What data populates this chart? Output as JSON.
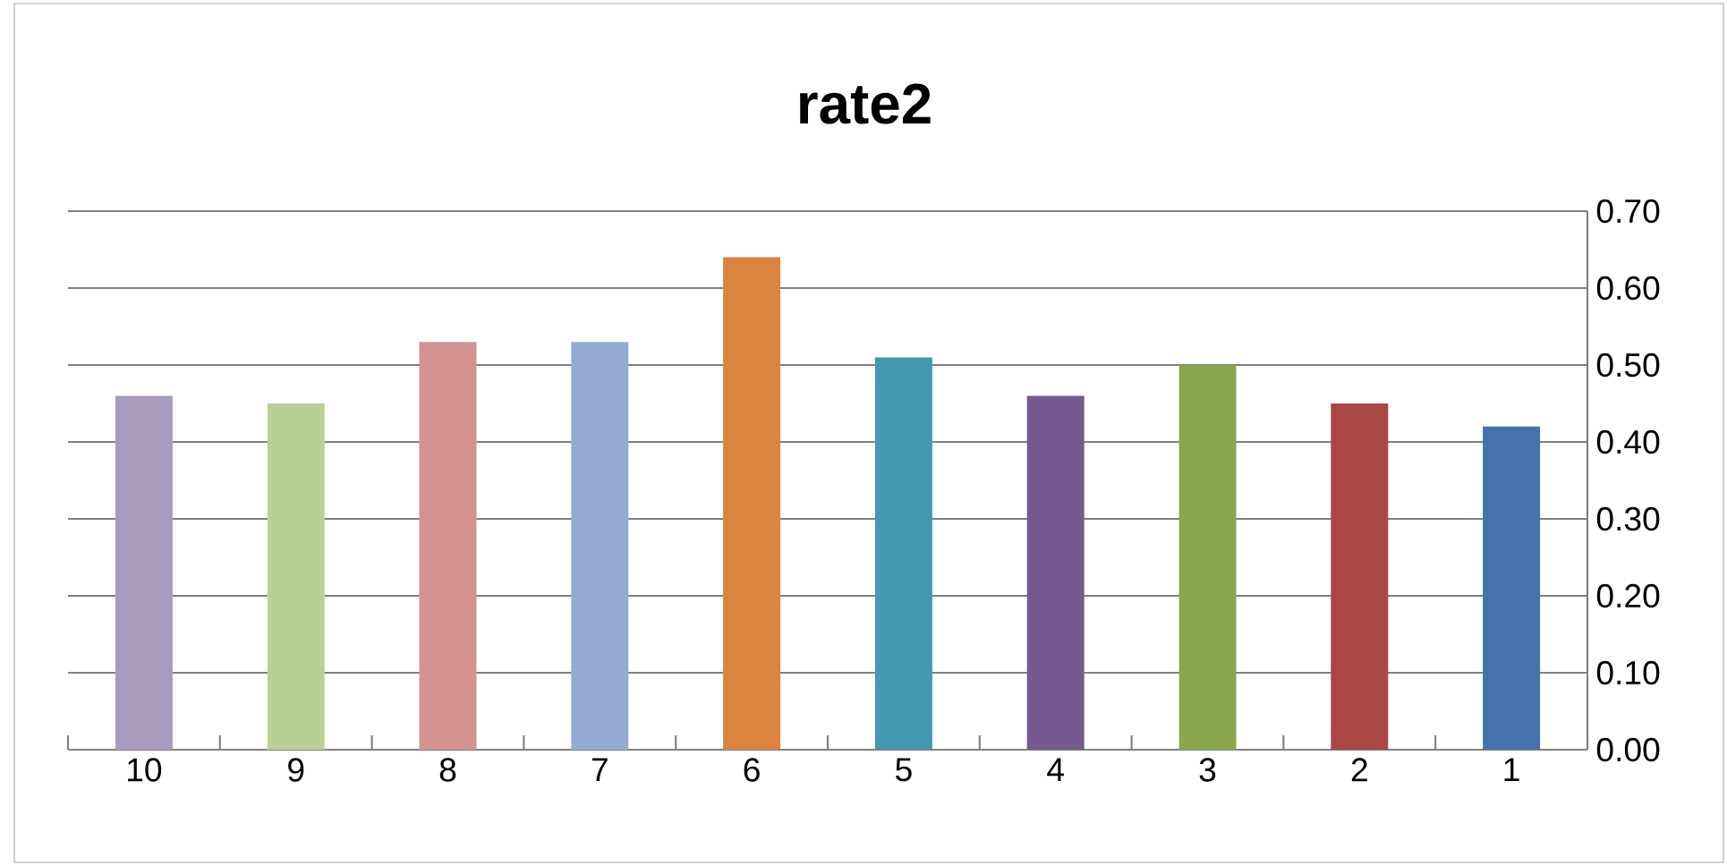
{
  "chart_data": {
    "type": "bar",
    "title": "rate2",
    "categories": [
      "10",
      "9",
      "8",
      "7",
      "6",
      "5",
      "4",
      "3",
      "2",
      "1"
    ],
    "values": [
      0.46,
      0.45,
      0.53,
      0.53,
      0.64,
      0.51,
      0.46,
      0.5,
      0.45,
      0.42
    ],
    "colors": [
      "#a99bbd",
      "#bacf95",
      "#d39392",
      "#95abd3",
      "#db843d",
      "#4399b0",
      "#745a90",
      "#8aa64c",
      "#aa4744",
      "#4573a9"
    ],
    "ylim": [
      0,
      0.7
    ],
    "yticks": [
      {
        "value": 0,
        "label": "0.00"
      },
      {
        "value": 0.1,
        "label": "0.10"
      },
      {
        "value": 0.2,
        "label": "0.20"
      },
      {
        "value": 0.3,
        "label": "0.30"
      },
      {
        "value": 0.4,
        "label": "0.40"
      },
      {
        "value": 0.5,
        "label": "0.50"
      },
      {
        "value": 0.6,
        "label": "0.60"
      },
      {
        "value": 0.7,
        "label": "0.70"
      }
    ],
    "grid": "y"
  }
}
